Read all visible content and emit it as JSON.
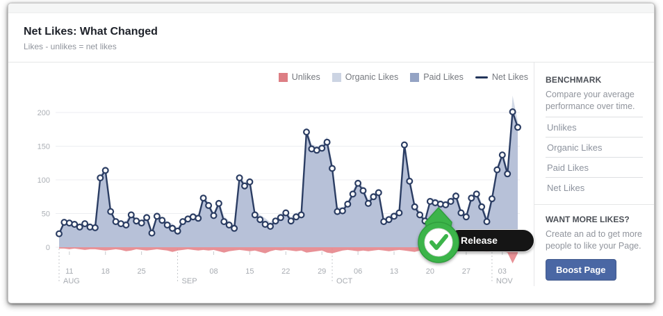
{
  "header": {
    "title": "Net Likes: What Changed",
    "subtitle": "Likes - unlikes = net likes"
  },
  "legend": [
    {
      "label": "Unlikes",
      "color": "#dd7e84",
      "type": "square"
    },
    {
      "label": "Organic Likes",
      "color": "#ccd4e3",
      "type": "square"
    },
    {
      "label": "Paid Likes",
      "color": "#94a3c4",
      "type": "square"
    },
    {
      "label": "Net Likes",
      "color": "#22345a",
      "type": "line"
    }
  ],
  "sidebar": {
    "benchmark_title": "BENCHMARK",
    "benchmark_desc": "Compare your average performance over time.",
    "links": {
      "0": "Unlikes",
      "1": "Organic Likes",
      "2": "Paid Likes",
      "3": "Net Likes"
    },
    "promo_title": "WANT MORE LIKES?",
    "promo_desc": "Create an ad to get more people to like your Page.",
    "boost_button_label": "Boost Page",
    "boost_button_color": "#4a67a4"
  },
  "badge": {
    "tooltip_label": "Release Date",
    "pin_color": "#3cb44a",
    "pin_edge_color": "#2f9e3d",
    "check_color": "#3cb44a"
  },
  "chart_data": {
    "type": "line+stacked-area",
    "title": "Net Likes: What Changed",
    "xlabel": "",
    "ylabel": "",
    "y_ticks": [
      0,
      50,
      100,
      150,
      200
    ],
    "ylim": [
      -30,
      215
    ],
    "grid": true,
    "legend_position": "top-right",
    "x_week_ticks": [
      {
        "i": 2,
        "label": "11"
      },
      {
        "i": 9,
        "label": "18"
      },
      {
        "i": 16,
        "label": "25"
      },
      {
        "i": 30,
        "label": "08"
      },
      {
        "i": 37,
        "label": "15"
      },
      {
        "i": 44,
        "label": "22"
      },
      {
        "i": 51,
        "label": "29"
      },
      {
        "i": 58,
        "label": "06"
      },
      {
        "i": 65,
        "label": "13"
      },
      {
        "i": 72,
        "label": "20"
      },
      {
        "i": 79,
        "label": "27"
      },
      {
        "i": 86,
        "label": "03"
      }
    ],
    "x_month_lines": [
      {
        "i": 0,
        "label": "AUG"
      },
      {
        "i": 23,
        "label": "SEP"
      },
      {
        "i": 53,
        "label": "OCT"
      },
      {
        "i": 84,
        "label": "NOV"
      }
    ],
    "organic_color": "#d2d9e6",
    "paid_color": "#b7c1d8",
    "series": [
      {
        "name": "Net Likes",
        "color": "#2b3d63",
        "marker": "circle",
        "values": [
          20,
          37,
          36,
          34,
          30,
          35,
          30,
          29,
          103,
          114,
          53,
          38,
          35,
          33,
          48,
          39,
          36,
          44,
          21,
          46,
          40,
          33,
          28,
          24,
          38,
          42,
          45,
          43,
          73,
          62,
          47,
          65,
          38,
          33,
          28,
          103,
          91,
          97,
          48,
          41,
          34,
          31,
          39,
          44,
          51,
          39,
          45,
          48,
          171,
          146,
          144,
          147,
          156,
          117,
          53,
          54,
          64,
          79,
          95,
          84,
          65,
          75,
          81,
          38,
          41,
          46,
          51,
          152,
          98,
          60,
          48,
          39,
          68,
          66,
          64,
          63,
          68,
          76,
          51,
          45,
          73,
          79,
          60,
          38,
          72,
          115,
          137,
          109,
          201,
          178
        ]
      },
      {
        "name": "Unlikes",
        "color": "#e5858b",
        "values": [
          -2,
          -2,
          -3,
          -2,
          -3,
          -4,
          -3,
          -3,
          -4,
          -5,
          -4,
          -3,
          -4,
          -6,
          -5,
          -3,
          -4,
          -5,
          -4,
          -3,
          -4,
          -5,
          -7,
          -5,
          -4,
          -3,
          -4,
          -5,
          -4,
          -5,
          -4,
          -6,
          -8,
          -6,
          -5,
          -4,
          -5,
          -6,
          -5,
          -7,
          -9,
          -6,
          -4,
          -5,
          -4,
          -5,
          -6,
          -5,
          -8,
          -7,
          -6,
          -5,
          -8,
          -9,
          -7,
          -5,
          -4,
          -5,
          -6,
          -5,
          -6,
          -5,
          -4,
          -5,
          -6,
          -5,
          -4,
          -5,
          -6,
          -7,
          -5,
          -4,
          -5,
          -6,
          -5,
          -4,
          -5,
          -7,
          -6,
          -5,
          -4,
          -5,
          -6,
          -7,
          -6,
          -5,
          -6,
          -8,
          -24,
          -9
        ]
      }
    ]
  }
}
